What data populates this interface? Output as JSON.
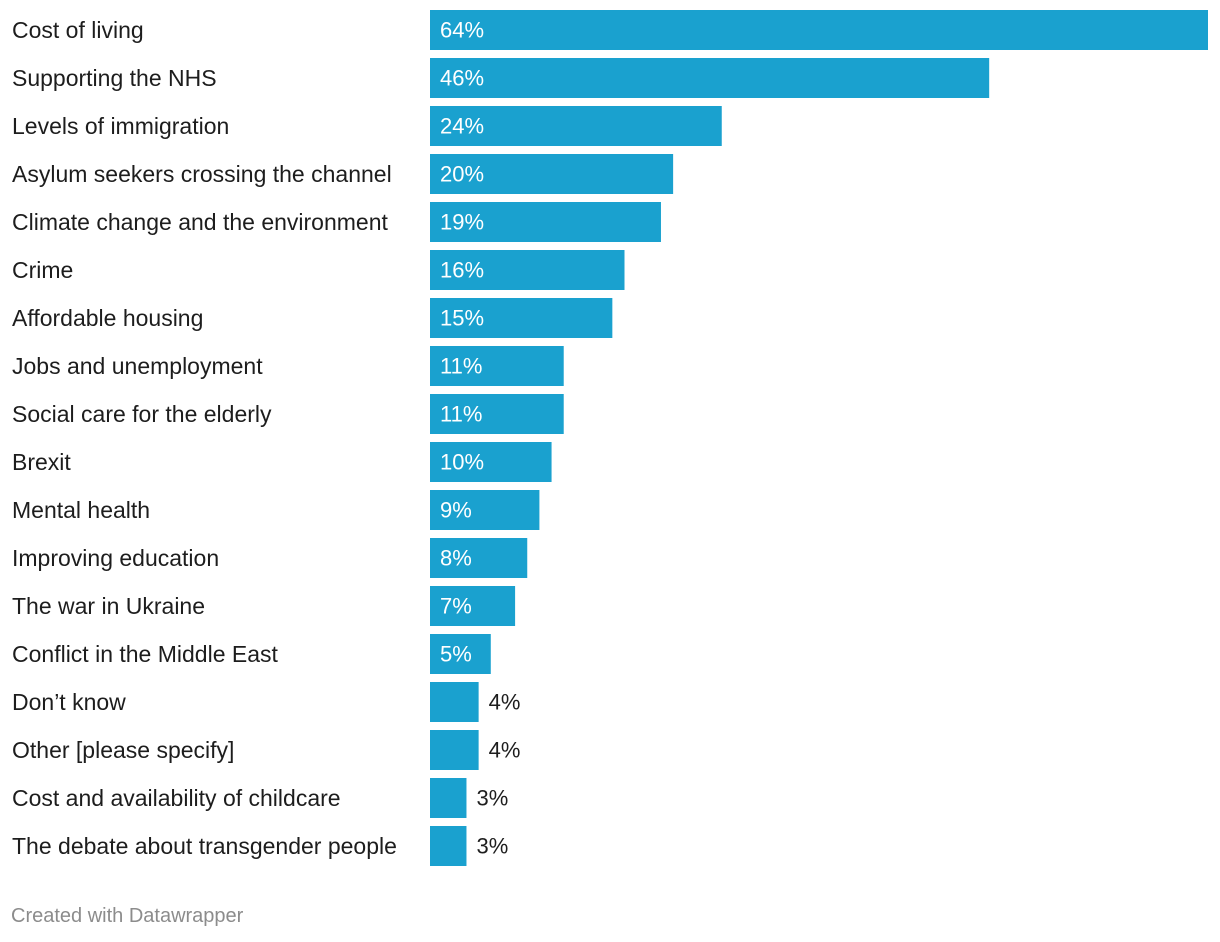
{
  "chart_data": {
    "type": "bar",
    "orientation": "horizontal",
    "categories": [
      "Cost of living",
      "Supporting the NHS",
      "Levels of immigration",
      "Asylum seekers crossing the channel",
      "Climate change and the environment",
      "Crime",
      "Affordable housing",
      "Jobs and unemployment",
      "Social care for the elderly",
      "Brexit",
      "Mental health",
      "Improving education",
      "The war in Ukraine",
      "Conflict in the Middle East",
      "Don’t know",
      "Other [please specify]",
      "Cost and availability of childcare",
      "The debate about transgender people"
    ],
    "values": [
      64,
      46,
      24,
      20,
      19,
      16,
      15,
      11,
      11,
      10,
      9,
      8,
      7,
      5,
      4,
      4,
      3,
      3
    ],
    "value_labels": [
      "64%",
      "46%",
      "24%",
      "20%",
      "19%",
      "16%",
      "15%",
      "11%",
      "11%",
      "10%",
      "9%",
      "8%",
      "7%",
      "5%",
      "4%",
      "4%",
      "3%",
      "3%"
    ],
    "xlim": [
      0,
      64
    ],
    "grid": false,
    "bar_color": "#1aa1cf",
    "inside_label_color": "#ffffff",
    "outside_label_color": "#1d1d1d"
  },
  "footer": {
    "credit": "Created with Datawrapper"
  }
}
